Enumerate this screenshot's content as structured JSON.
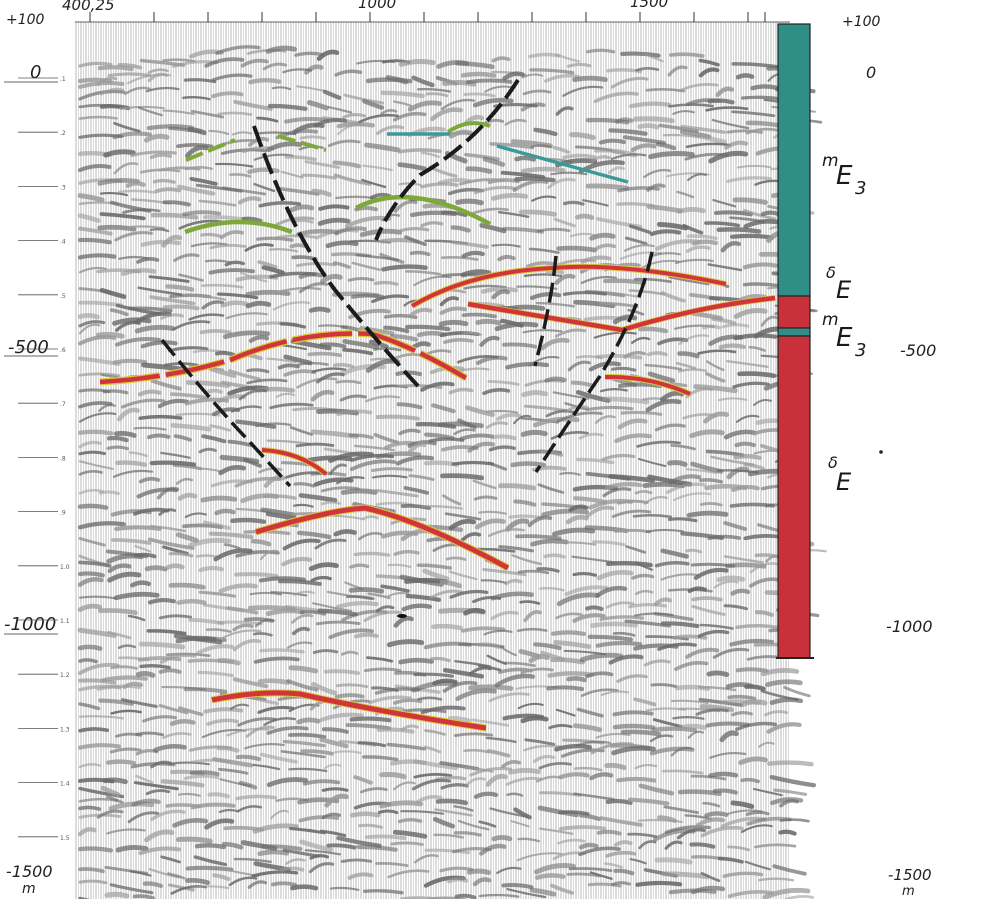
{
  "top_axis": {
    "labels": [
      "400,25",
      "1000",
      "1500"
    ]
  },
  "left_depth": {
    "labels": [
      "+100",
      "0",
      "-500",
      "-1000",
      "-1500",
      "m"
    ]
  },
  "right_depth": {
    "labels": [
      "+100",
      "0",
      "-500",
      "-1000",
      "-1500",
      "m"
    ]
  },
  "time_ticks": [
    ".1",
    ".2",
    ".3",
    ".4",
    ".5",
    ".6",
    ".7",
    ".8",
    ".9",
    "1.0",
    "1.1",
    "1.2",
    "1.3",
    "1.4",
    "1.5"
  ],
  "column_units": {
    "u1": {
      "sup": "m",
      "main": "E",
      "sub": "3"
    },
    "u2": {
      "sup": "δ",
      "main": "E"
    },
    "u3": {
      "sup": "m",
      "main": "E",
      "sub": "3"
    },
    "u4": {
      "sup": "δ",
      "main": "E"
    }
  },
  "colors": {
    "teal_unit": "#2f8f86",
    "red_unit": "#c8303a",
    "red_horizon": "#d2343c",
    "yellow_edge": "#d8c93a",
    "green_horizon": "#7ea83a",
    "blue_horizon": "#3a9a9a",
    "fault": "#1b1b1b",
    "seismic_ink": "#555555"
  }
}
